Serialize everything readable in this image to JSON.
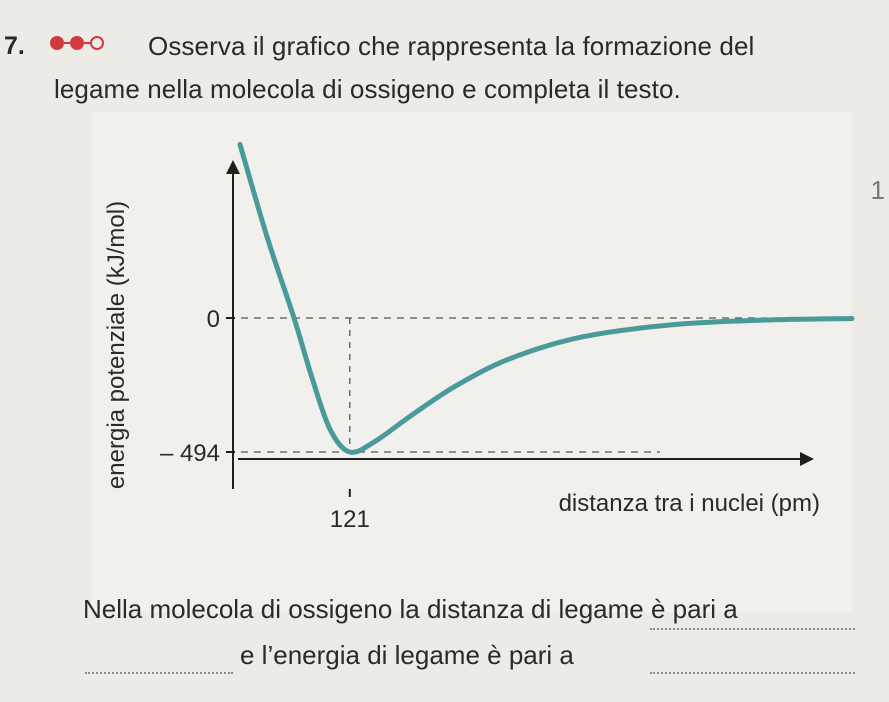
{
  "exercise": {
    "number": "7.",
    "difficulty_icon": "difficulty-dots-icon",
    "prompt_line1": "Osserva il grafico che rappresenta la formazione del",
    "prompt_line2": "legame nella molecola di ossigeno e completa il testo."
  },
  "side_mark": "1",
  "chart_data": {
    "type": "line",
    "title": "",
    "xlabel": "distanza tra i nuclei (pm)",
    "ylabel": "energia potenziale (kJ/mol)",
    "x_ticks": [
      {
        "value": 121,
        "label": "121"
      }
    ],
    "y_ticks": [
      {
        "value": 0,
        "label": "0"
      },
      {
        "value": -494,
        "label": "– 494"
      }
    ],
    "minimum": {
      "x": 121,
      "y": -494
    },
    "grid": false,
    "series": [
      {
        "color": "#4a9a9a",
        "x": [
          60,
          75,
          90,
          100,
          110,
          121,
          135,
          155,
          180,
          210,
          250,
          300,
          350,
          400
        ],
        "y": [
          640,
          300,
          0,
          -220,
          -410,
          -494,
          -455,
          -360,
          -250,
          -150,
          -70,
          -25,
          -8,
          -2
        ]
      }
    ]
  },
  "completion": {
    "line1": "Nella molecola di ossigeno la distanza di legame è pari a",
    "line2": "e l’energia di legame è pari a"
  }
}
